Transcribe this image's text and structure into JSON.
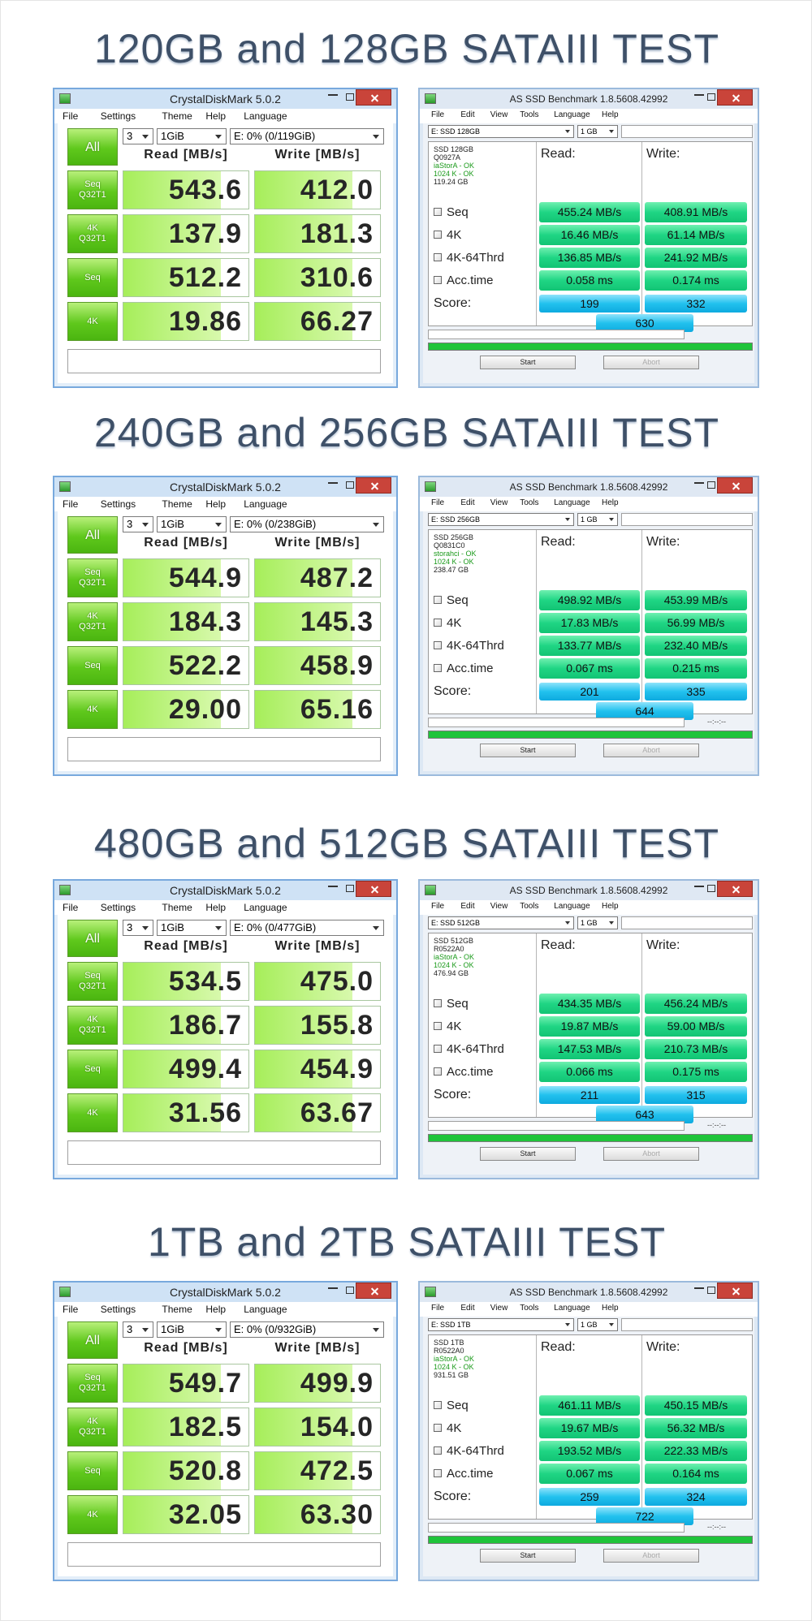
{
  "sections": [
    {
      "title": "120GB and 128GB SATAIII TEST",
      "crystaldiskmark": {
        "window_title": "CrystalDiskMark 5.0.2",
        "menu": [
          "File",
          "Settings",
          "Theme",
          "Help",
          "Language"
        ],
        "all_button": "All",
        "count": "3",
        "size": "1GiB",
        "drive": "E: 0% (0/119GiB)",
        "read_header": "Read [MB/s]",
        "write_header": "Write [MB/s]",
        "rows": [
          {
            "label": [
              "Seq",
              "Q32T1"
            ],
            "read": "543.6",
            "write": "412.0"
          },
          {
            "label": [
              "4K",
              "Q32T1"
            ],
            "read": "137.9",
            "write": "181.3"
          },
          {
            "label": [
              "Seq"
            ],
            "read": "512.2",
            "write": "310.6"
          },
          {
            "label": [
              "4K"
            ],
            "read": "19.86",
            "write": "66.27"
          }
        ]
      },
      "as_ssd": {
        "window_title": "AS SSD Benchmark 1.8.5608.42992",
        "menu": [
          "File",
          "Edit",
          "View",
          "Tools",
          "Language",
          "Help"
        ],
        "drive_select": "E: SSD 128GB",
        "size_select": "1 GB",
        "info": [
          "SSD 128GB",
          "Q0927A",
          "iaStorA - OK",
          "1024 K - OK",
          "119.24 GB"
        ],
        "read_header": "Read:",
        "write_header": "Write:",
        "rows": [
          {
            "label": "Seq",
            "read": "455.24 MB/s",
            "write": "408.91 MB/s"
          },
          {
            "label": "4K",
            "read": "16.46 MB/s",
            "write": "61.14 MB/s"
          },
          {
            "label": "4K-64Thrd",
            "read": "136.85 MB/s",
            "write": "241.92 MB/s"
          },
          {
            "label": "Acc.time",
            "read": "0.058 ms",
            "write": "0.174 ms"
          }
        ],
        "score_label": "Score:",
        "score_read": "199",
        "score_write": "332",
        "score_total": "630",
        "start": "Start",
        "abort": "Abort"
      }
    },
    {
      "title": "240GB and 256GB SATAIII TEST",
      "crystaldiskmark": {
        "window_title": "CrystalDiskMark 5.0.2",
        "menu": [
          "File",
          "Settings",
          "Theme",
          "Help",
          "Language"
        ],
        "all_button": "All",
        "count": "3",
        "size": "1GiB",
        "drive": "E: 0% (0/238GiB)",
        "read_header": "Read [MB/s]",
        "write_header": "Write [MB/s]",
        "rows": [
          {
            "label": [
              "Seq",
              "Q32T1"
            ],
            "read": "544.9",
            "write": "487.2"
          },
          {
            "label": [
              "4K",
              "Q32T1"
            ],
            "read": "184.3",
            "write": "145.3"
          },
          {
            "label": [
              "Seq"
            ],
            "read": "522.2",
            "write": "458.9"
          },
          {
            "label": [
              "4K"
            ],
            "read": "29.00",
            "write": "65.16"
          }
        ]
      },
      "as_ssd": {
        "window_title": "AS SSD Benchmark 1.8.5608.42992",
        "menu": [
          "File",
          "Edit",
          "View",
          "Tools",
          "Language",
          "Help"
        ],
        "drive_select": "E: SSD 256GB",
        "size_select": "1 GB",
        "info": [
          "SSD 256GB",
          "Q0831C0",
          "storahci - OK",
          "1024 K - OK",
          "238.47 GB"
        ],
        "read_header": "Read:",
        "write_header": "Write:",
        "rows": [
          {
            "label": "Seq",
            "read": "498.92 MB/s",
            "write": "453.99 MB/s"
          },
          {
            "label": "4K",
            "read": "17.83 MB/s",
            "write": "56.99 MB/s"
          },
          {
            "label": "4K-64Thrd",
            "read": "133.77 MB/s",
            "write": "232.40 MB/s"
          },
          {
            "label": "Acc.time",
            "read": "0.067 ms",
            "write": "0.215 ms"
          }
        ],
        "score_label": "Score:",
        "score_read": "201",
        "score_write": "335",
        "score_total": "644",
        "time": "--:--:--",
        "start": "Start",
        "abort": "Abort"
      }
    },
    {
      "title": "480GB and 512GB SATAIII TEST",
      "crystaldiskmark": {
        "window_title": "CrystalDiskMark 5.0.2",
        "menu": [
          "File",
          "Settings",
          "Theme",
          "Help",
          "Language"
        ],
        "all_button": "All",
        "count": "3",
        "size": "1GiB",
        "drive": "E: 0% (0/477GiB)",
        "read_header": "Read [MB/s]",
        "write_header": "Write [MB/s]",
        "rows": [
          {
            "label": [
              "Seq",
              "Q32T1"
            ],
            "read": "534.5",
            "write": "475.0"
          },
          {
            "label": [
              "4K",
              "Q32T1"
            ],
            "read": "186.7",
            "write": "155.8"
          },
          {
            "label": [
              "Seq"
            ],
            "read": "499.4",
            "write": "454.9"
          },
          {
            "label": [
              "4K"
            ],
            "read": "31.56",
            "write": "63.67"
          }
        ]
      },
      "as_ssd": {
        "window_title": "AS SSD Benchmark 1.8.5608.42992",
        "menu": [
          "File",
          "Edit",
          "View",
          "Tools",
          "Language",
          "Help"
        ],
        "drive_select": "E: SSD 512GB",
        "size_select": "1 GB",
        "info": [
          "SSD 512GB",
          "R0522A0",
          "iaStorA - OK",
          "1024 K - OK",
          "476.94 GB"
        ],
        "read_header": "Read:",
        "write_header": "Write:",
        "rows": [
          {
            "label": "Seq",
            "read": "434.35 MB/s",
            "write": "456.24 MB/s"
          },
          {
            "label": "4K",
            "read": "19.87 MB/s",
            "write": "59.00 MB/s"
          },
          {
            "label": "4K-64Thrd",
            "read": "147.53 MB/s",
            "write": "210.73 MB/s"
          },
          {
            "label": "Acc.time",
            "read": "0.066 ms",
            "write": "0.175 ms"
          }
        ],
        "score_label": "Score:",
        "score_read": "211",
        "score_write": "315",
        "score_total": "643",
        "time": "--:--:--",
        "start": "Start",
        "abort": "Abort"
      }
    },
    {
      "title": "1TB and 2TB SATAIII TEST",
      "crystaldiskmark": {
        "window_title": "CrystalDiskMark 5.0.2",
        "menu": [
          "File",
          "Settings",
          "Theme",
          "Help",
          "Language"
        ],
        "all_button": "All",
        "count": "3",
        "size": "1GiB",
        "drive": "E: 0% (0/932GiB)",
        "read_header": "Read [MB/s]",
        "write_header": "Write [MB/s]",
        "rows": [
          {
            "label": [
              "Seq",
              "Q32T1"
            ],
            "read": "549.7",
            "write": "499.9"
          },
          {
            "label": [
              "4K",
              "Q32T1"
            ],
            "read": "182.5",
            "write": "154.0"
          },
          {
            "label": [
              "Seq"
            ],
            "read": "520.8",
            "write": "472.5"
          },
          {
            "label": [
              "4K"
            ],
            "read": "32.05",
            "write": "63.30"
          }
        ]
      },
      "as_ssd": {
        "window_title": "AS SSD Benchmark 1.8.5608.42992",
        "menu": [
          "File",
          "Edit",
          "View",
          "Tools",
          "Language",
          "Help"
        ],
        "drive_select": "E: SSD 1TB",
        "size_select": "1 GB",
        "info": [
          "SSD 1TB",
          "R0522A0",
          "iaStorA - OK",
          "1024 K - OK",
          "931.51 GB"
        ],
        "read_header": "Read:",
        "write_header": "Write:",
        "rows": [
          {
            "label": "Seq",
            "read": "461.11 MB/s",
            "write": "450.15 MB/s"
          },
          {
            "label": "4K",
            "read": "19.67 MB/s",
            "write": "56.32 MB/s"
          },
          {
            "label": "4K-64Thrd",
            "read": "193.52 MB/s",
            "write": "222.33 MB/s"
          },
          {
            "label": "Acc.time",
            "read": "0.067 ms",
            "write": "0.164 ms"
          }
        ],
        "score_label": "Score:",
        "score_read": "259",
        "score_write": "324",
        "score_total": "722",
        "time": "--:--:--",
        "start": "Start",
        "abort": "Abort"
      }
    }
  ]
}
